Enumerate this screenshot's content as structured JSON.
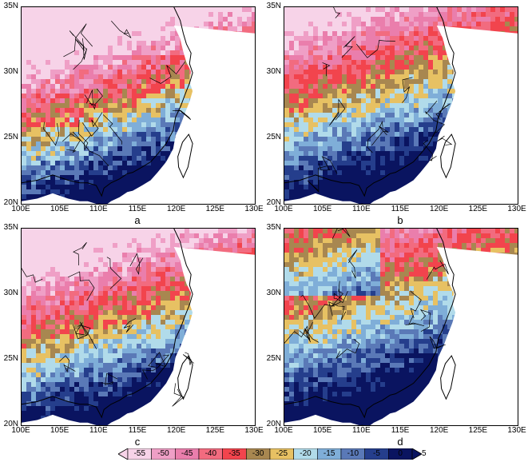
{
  "colors": {
    "levels": [
      "#f7d3e8",
      "#ef9fc6",
      "#ea7eac",
      "#f26b7f",
      "#f2444d",
      "#a88750",
      "#e7c163",
      "#b1dbea",
      "#7faed8",
      "#5a79b7",
      "#253e8c",
      "#0a1460"
    ],
    "coast": "#000000",
    "no_data": "#ffffff"
  },
  "axes": {
    "x_ticks": [
      "100E",
      "105E",
      "110E",
      "115E",
      "120E",
      "125E",
      "130E"
    ],
    "y_ticks": [
      "35N",
      "30N",
      "25N",
      "20N"
    ]
  },
  "panels": [
    {
      "label": "a",
      "intensity": 0.95,
      "band_shift": 0.0
    },
    {
      "label": "b",
      "intensity": 0.75,
      "band_shift": 0.05
    },
    {
      "label": "c",
      "intensity": 0.85,
      "band_shift": 0.0
    },
    {
      "label": "d",
      "intensity": 0.7,
      "band_shift": 0.1
    }
  ],
  "colorbar": {
    "labels": [
      "-55",
      "-50",
      "-45",
      "-40",
      "-35",
      "-30",
      "-25",
      "-20",
      "-15",
      "-10",
      "-5",
      "0",
      "5"
    ]
  }
}
